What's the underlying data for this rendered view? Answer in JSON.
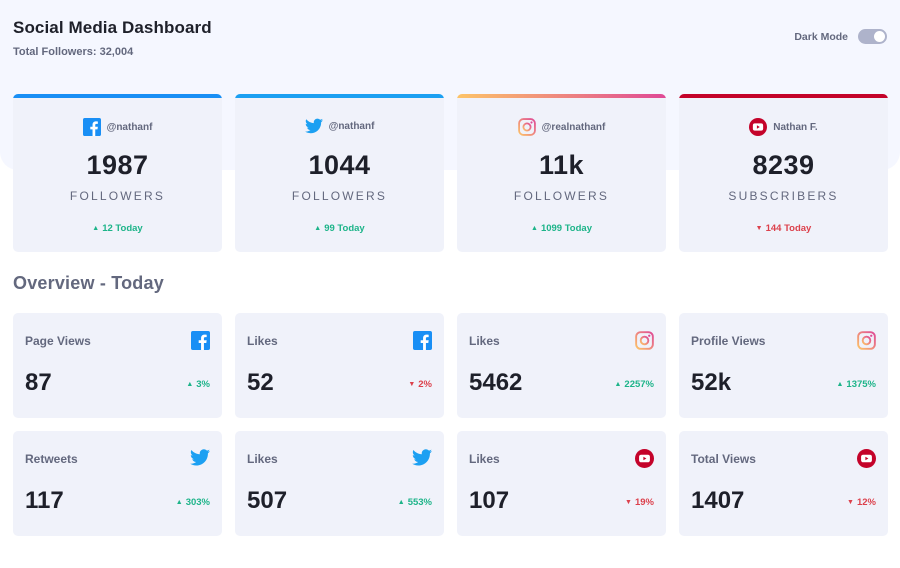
{
  "header": {
    "title": "Social Media Dashboard",
    "subtitle": "Total Followers: 32,004",
    "dark_mode_label": "Dark Mode",
    "dark_mode_on": false
  },
  "followers": [
    {
      "platform": "facebook",
      "icon": "facebook-icon",
      "handle": "@nathanf",
      "count": "1987",
      "unit": "FOLLOWERS",
      "delta": "12 Today",
      "trend": "up",
      "accent": "#198ff5"
    },
    {
      "platform": "twitter",
      "icon": "twitter-icon",
      "handle": "@nathanf",
      "count": "1044",
      "unit": "FOLLOWERS",
      "delta": "99 Today",
      "trend": "up",
      "accent": "#1ca0f2"
    },
    {
      "platform": "instagram",
      "icon": "instagram-icon",
      "handle": "@realnathanf",
      "count": "11k",
      "unit": "FOLLOWERS",
      "delta": "1099 Today",
      "trend": "up",
      "accent": "#df4996"
    },
    {
      "platform": "youtube",
      "icon": "youtube-icon",
      "handle": "Nathan F.",
      "count": "8239",
      "unit": "SUBSCRIBERS",
      "delta": "144 Today",
      "trend": "down",
      "accent": "#c4032a"
    }
  ],
  "overview": {
    "title": "Overview - Today",
    "cards": [
      {
        "metric": "Page Views",
        "icon": "facebook-icon",
        "value": "87",
        "change": "3%",
        "trend": "up"
      },
      {
        "metric": "Likes",
        "icon": "facebook-icon",
        "value": "52",
        "change": "2%",
        "trend": "down"
      },
      {
        "metric": "Likes",
        "icon": "instagram-icon",
        "value": "5462",
        "change": "2257%",
        "trend": "up"
      },
      {
        "metric": "Profile Views",
        "icon": "instagram-icon",
        "value": "52k",
        "change": "1375%",
        "trend": "up"
      },
      {
        "metric": "Retweets",
        "icon": "twitter-icon",
        "value": "117",
        "change": "303%",
        "trend": "up"
      },
      {
        "metric": "Likes",
        "icon": "twitter-icon",
        "value": "507",
        "change": "553%",
        "trend": "up"
      },
      {
        "metric": "Likes",
        "icon": "youtube-icon",
        "value": "107",
        "change": "19%",
        "trend": "down"
      },
      {
        "metric": "Total Views",
        "icon": "youtube-icon",
        "value": "1407",
        "change": "12%",
        "trend": "down"
      }
    ]
  },
  "colors": {
    "up": "#1db489",
    "down": "#dc414c",
    "instagram_gradient": [
      "#fdc468",
      "#df4996"
    ]
  }
}
